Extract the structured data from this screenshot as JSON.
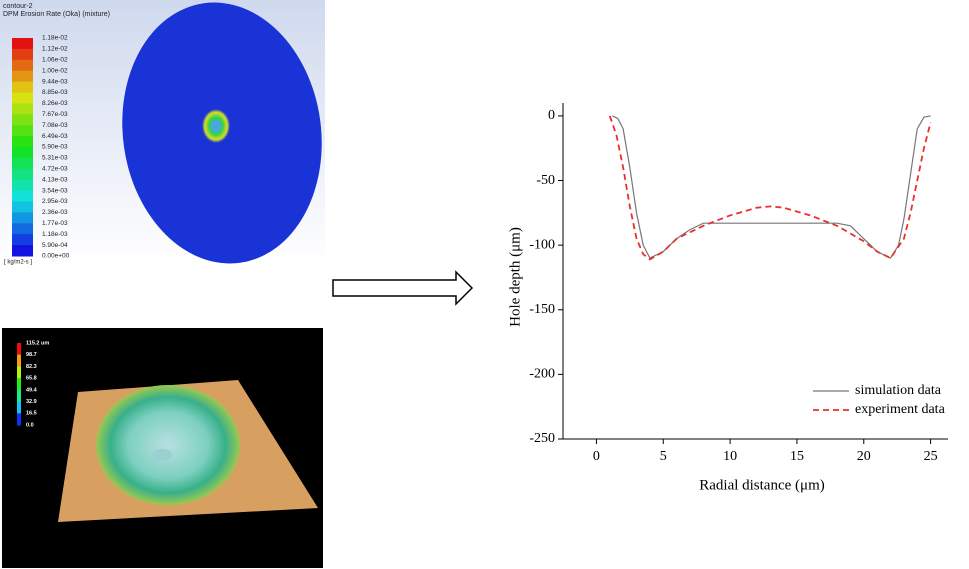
{
  "contour_panel": {
    "title": "contour-2",
    "subtitle": "DPM Erosion Rate (Oka) (mixture)",
    "legend_labels": [
      "1.18e-02",
      "1.12e-02",
      "1.06e-02",
      "1.00e-02",
      "9.44e-03",
      "8.85e-03",
      "8.26e-03",
      "7.67e-03",
      "7.08e-03",
      "6.49e-03",
      "5.90e-03",
      "5.31e-03",
      "4.72e-03",
      "4.13e-03",
      "3.54e-03",
      "2.95e-03",
      "2.36e-03",
      "1.77e-03",
      "1.18e-03",
      "5.90e-04",
      "0.00e+00"
    ],
    "unit": "[ kg/m2-s ]"
  },
  "surface_panel": {
    "legend_labels": [
      "115.2 um",
      "98.7",
      "82.3",
      "65.8",
      "49.4",
      "32.9",
      "16.5",
      "0.0"
    ]
  },
  "chart_data": {
    "type": "line",
    "x_label": "Radial distance (μm)",
    "y_label": "Hole depth (μm)",
    "xlim": [
      -2.5,
      26.3
    ],
    "xticks": [
      0,
      5,
      10,
      15,
      20,
      25
    ],
    "ylim": [
      -250,
      10
    ],
    "yticks": [
      0,
      -50,
      -100,
      -150,
      -200,
      -250
    ],
    "legend": "lower right",
    "series": [
      {
        "name": "simulation data",
        "color": "#777777",
        "linestyle": "solid",
        "x": [
          1.2,
          1.6,
          2,
          2.5,
          3,
          3.5,
          4,
          5,
          6,
          7,
          8,
          10,
          15,
          18,
          19,
          20,
          21,
          22,
          22.6,
          23,
          23.5,
          24,
          24.5,
          25
        ],
        "values": [
          0,
          -2,
          -10,
          -40,
          -75,
          -100,
          -110,
          -105,
          -95,
          -88,
          -83,
          -83,
          -83,
          -83,
          -85,
          -95,
          -105,
          -110,
          -100,
          -80,
          -45,
          -10,
          -1,
          0
        ]
      },
      {
        "name": "experiment data",
        "color": "#e8312a",
        "linestyle": "dashed",
        "x": [
          1,
          1.5,
          2,
          2.5,
          3,
          3.5,
          4,
          5,
          6,
          8,
          10,
          12,
          13,
          14,
          16,
          18,
          20,
          21,
          22,
          23,
          23.5,
          24,
          24.5,
          25
        ],
        "values": [
          0,
          -15,
          -40,
          -70,
          -95,
          -107,
          -111,
          -105,
          -95,
          -85,
          -77,
          -71,
          -70,
          -71,
          -77,
          -85,
          -97,
          -105,
          -110,
          -95,
          -75,
          -50,
          -25,
          -5
        ]
      }
    ]
  }
}
